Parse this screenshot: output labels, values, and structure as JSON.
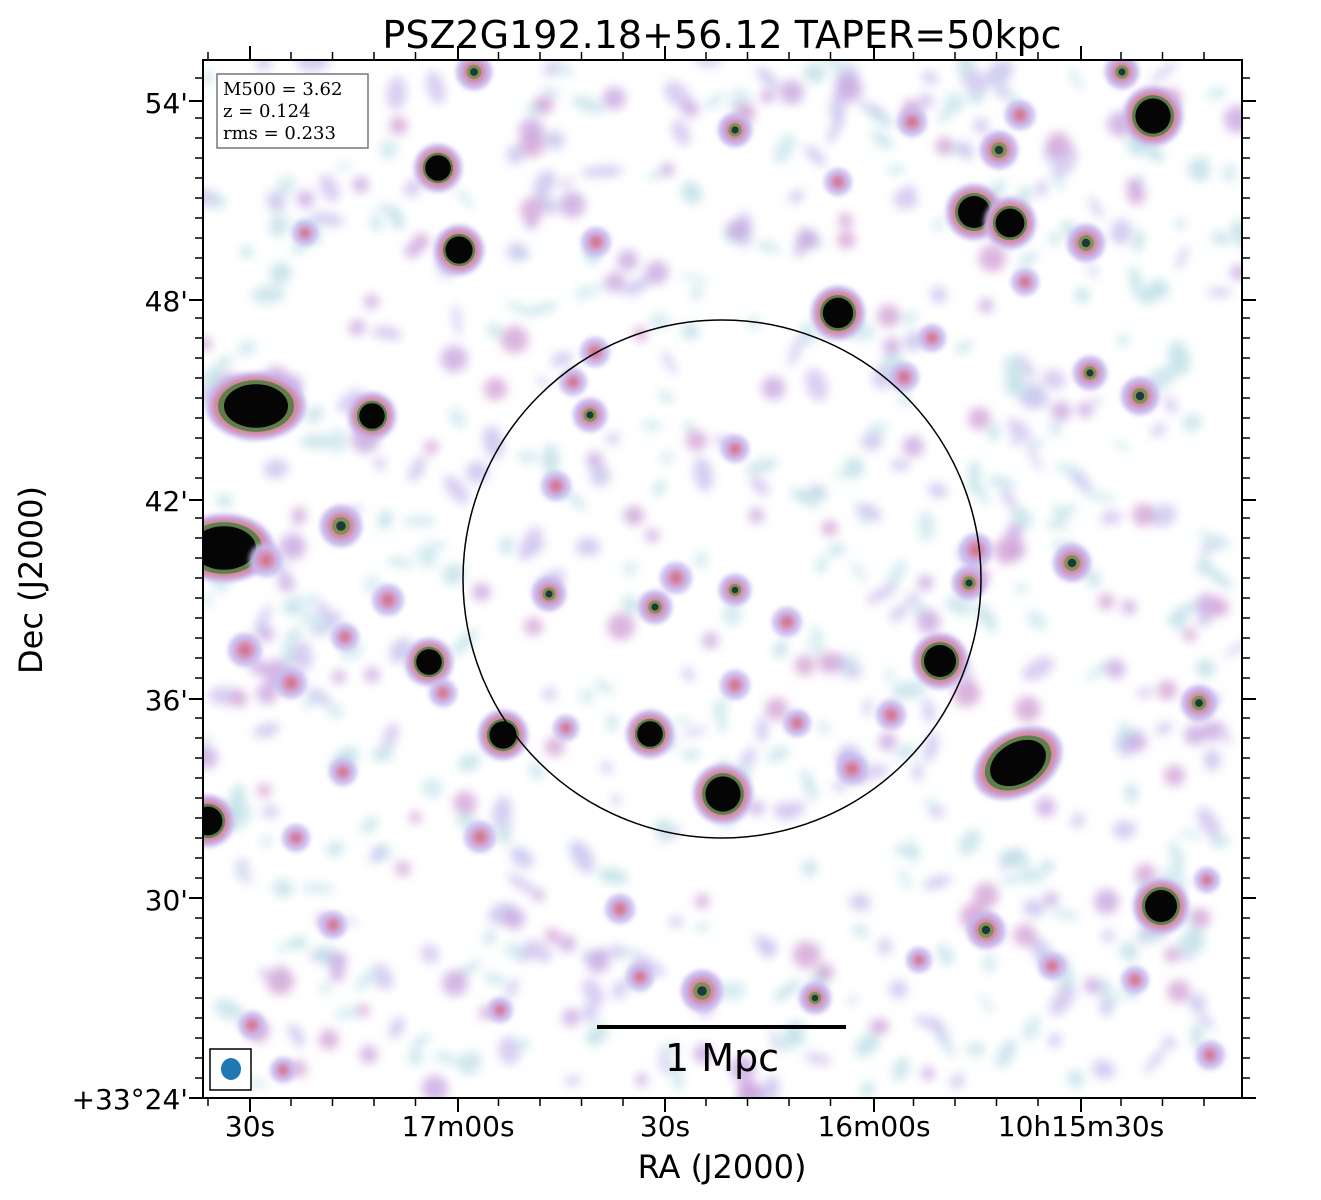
{
  "chart_data": {
    "type": "heatmap",
    "title": "PSZ2G192.18+56.12 TAPER=50kpc",
    "xlabel": "RA (J2000)",
    "ylabel": "Dec (J2000)",
    "x_ticks": [
      "30s",
      "17m00s",
      "30s",
      "16m00s",
      "10h15m30s"
    ],
    "y_ticks": [
      "+33°24'",
      "30'",
      "36'",
      "42'",
      "48'",
      "54'"
    ],
    "info": [
      "M500 = 3.62",
      "z = 0.124",
      "rms = 0.233"
    ],
    "scalebar_label": "1 Mpc",
    "colors": {
      "beam": "#1f77b4",
      "circle": "#000000",
      "frame": "#000000"
    },
    "colormap": "cubehelix-like (white → pale blue → lavender → pink → green → black)"
  }
}
